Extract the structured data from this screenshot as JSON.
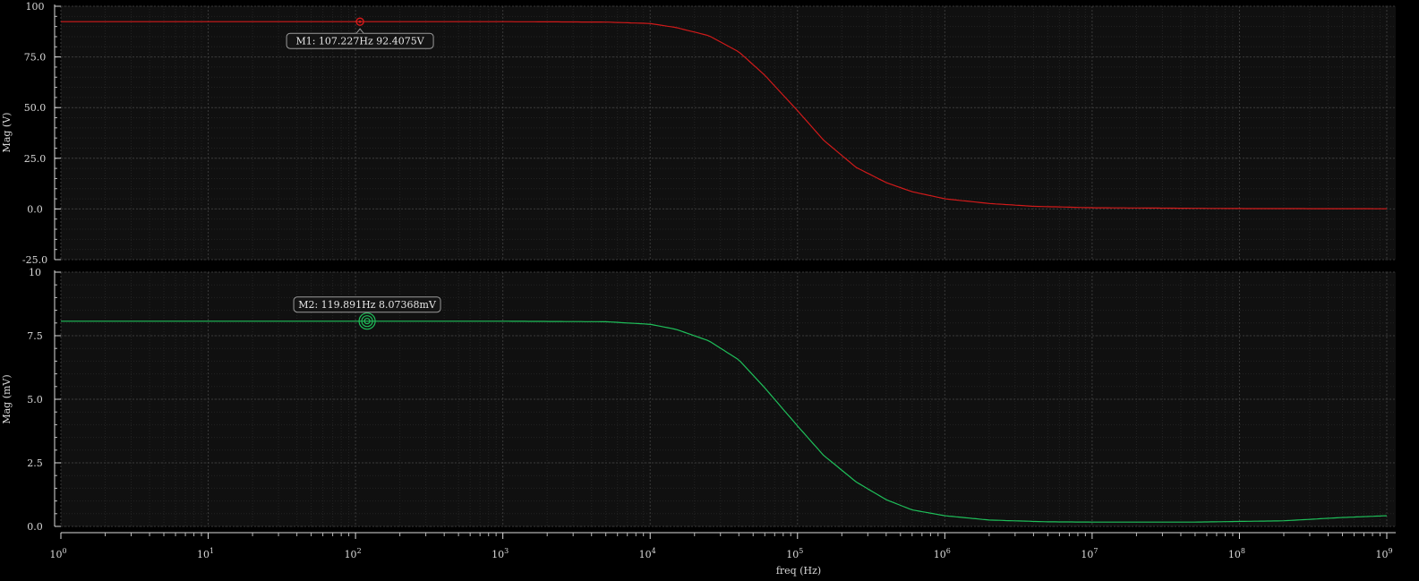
{
  "chart_data": [
    {
      "type": "line",
      "name": "top-panel",
      "xscale": "log",
      "xlim": [
        1,
        1000000000
      ],
      "ylim": [
        -25,
        100
      ],
      "ylabel": "Mag (V)",
      "yticks": [
        -25,
        0,
        25,
        50,
        75,
        100
      ],
      "ytick_labels": [
        "-25.0",
        "0.0",
        "25.0",
        "50.0",
        "75.0",
        "100"
      ],
      "grid": true,
      "series": [
        {
          "color": "#d11a1a",
          "x": [
            1,
            10,
            100,
            1000,
            5000,
            10000,
            15000,
            25000,
            40000,
            60000,
            100000,
            150000,
            250000,
            400000,
            600000,
            1000000,
            2000000,
            4000000,
            10000000,
            100000000,
            1000000000
          ],
          "y": [
            92.4,
            92.4,
            92.4,
            92.4,
            92.2,
            91.5,
            89.5,
            85.5,
            77.5,
            66.0,
            48.5,
            34.0,
            20.5,
            13.0,
            8.5,
            5.0,
            2.7,
            1.3,
            0.6,
            0.2,
            0.1
          ]
        }
      ],
      "markers": [
        {
          "label": "M1: 107.227Hz 92.4075V",
          "x": 107.227,
          "y": 92.4075
        }
      ]
    },
    {
      "type": "line",
      "name": "bottom-panel",
      "xscale": "log",
      "xlim": [
        1,
        1000000000
      ],
      "ylim": [
        0,
        10
      ],
      "ylabel": "Mag (mV)",
      "xlabel": "freq (Hz)",
      "yticks": [
        0,
        2.5,
        5,
        7.5,
        10
      ],
      "ytick_labels": [
        "0.0",
        "2.5",
        "5.0",
        "7.5",
        "10"
      ],
      "grid": true,
      "series": [
        {
          "color": "#1fbf5a",
          "x": [
            1,
            10,
            100,
            1000,
            5000,
            10000,
            15000,
            25000,
            40000,
            60000,
            100000,
            150000,
            250000,
            400000,
            600000,
            1000000,
            2000000,
            5000000,
            10000000,
            50000000,
            200000000,
            500000000,
            1000000000
          ],
          "y": [
            8.07,
            8.07,
            8.07,
            8.07,
            8.05,
            7.95,
            7.75,
            7.3,
            6.55,
            5.45,
            3.95,
            2.8,
            1.75,
            1.05,
            0.65,
            0.42,
            0.25,
            0.18,
            0.17,
            0.17,
            0.22,
            0.35,
            0.42
          ]
        }
      ],
      "markers": [
        {
          "label": "M2: 119.891Hz 8.07368mV",
          "x": 119.891,
          "y": 8.07368
        }
      ]
    }
  ],
  "x_axis": {
    "tick_bases": [
      "10",
      "10",
      "10",
      "10",
      "10",
      "10",
      "10",
      "10",
      "10",
      "10"
    ],
    "tick_exponents": [
      "0",
      "1",
      "2",
      "3",
      "4",
      "5",
      "6",
      "7",
      "8",
      "9"
    ]
  }
}
